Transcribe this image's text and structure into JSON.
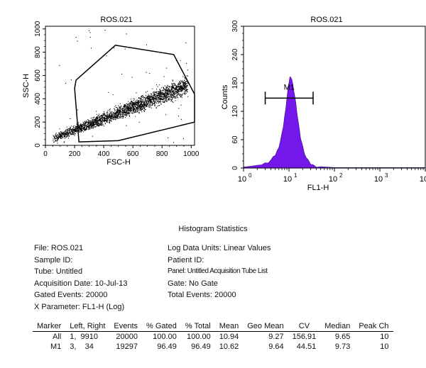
{
  "chart_data": [
    {
      "type": "scatter",
      "title": "ROS.021",
      "xlabel": "FSC-H",
      "ylabel": "SSC-H",
      "xlim": [
        0,
        1023
      ],
      "ylim": [
        0,
        1023
      ],
      "x_ticks": [
        "0",
        "200",
        "400",
        "600",
        "800",
        "1000"
      ],
      "y_ticks": [
        "0",
        "200",
        "400",
        "600",
        "800",
        "1000"
      ],
      "point_cloud": {
        "x_range": [
          50,
          1023
        ],
        "y_center_at_x50": 60,
        "y_center_at_x900": 480,
        "n_points": 20000
      },
      "gate_polygon": [
        [
          200,
          490
        ],
        [
          210,
          560
        ],
        [
          480,
          860
        ],
        [
          880,
          780
        ],
        [
          1023,
          440
        ],
        [
          1023,
          200
        ],
        [
          500,
          40
        ],
        [
          230,
          30
        ]
      ]
    },
    {
      "type": "bar",
      "title": "ROS.021",
      "xlabel": "FL1-H",
      "ylabel": "Counts",
      "x_scale": "log",
      "xlim": [
        1,
        10000
      ],
      "ylim": [
        0,
        300
      ],
      "x_ticks": [
        "10",
        "10",
        "10",
        "10",
        "10"
      ],
      "x_tick_exponents": [
        "0",
        "1",
        "2",
        "3",
        "4"
      ],
      "y_ticks": [
        "0",
        "60",
        "120",
        "180",
        "240",
        "300"
      ],
      "bar_color": "#7417ea",
      "marker": {
        "label": "M1",
        "left": 3,
        "right": 34,
        "y": 148
      },
      "histogram": {
        "x": [
          1,
          1.5,
          2,
          2.5,
          3,
          3.5,
          4,
          4.5,
          5,
          5.5,
          6,
          6.5,
          7,
          7.5,
          8,
          8.5,
          9,
          9.5,
          10,
          10.5,
          11,
          11.5,
          12,
          13,
          14,
          15,
          16,
          17,
          18,
          20,
          22,
          24,
          27,
          30,
          34,
          40,
          50,
          70,
          100,
          10000
        ],
        "counts": [
          2,
          4,
          6,
          8,
          10,
          13,
          17,
          22,
          28,
          36,
          46,
          58,
          72,
          88,
          108,
          128,
          148,
          166,
          182,
          192,
          194,
          188,
          178,
          160,
          140,
          118,
          98,
          80,
          64,
          46,
          32,
          22,
          14,
          9,
          6,
          4,
          3,
          2,
          1,
          1
        ]
      }
    }
  ],
  "stats_title": "Histogram Statistics",
  "meta_left": [
    "File: ROS.021",
    "Sample ID:",
    "Tube: Untitled",
    "Acquisition Date: 10-Jul-13",
    "Gated Events: 20000",
    "X Parameter: FL1-H (Log)"
  ],
  "meta_right": [
    "Log Data Units: Linear Values",
    "Patient ID:",
    "Panel: Untitled Acquisition Tube List",
    "Gate: No Gate",
    "Total Events: 20000"
  ],
  "table": {
    "headers": [
      "Marker",
      "Left, Right",
      "Events",
      "% Gated",
      "% Total",
      "Mean",
      "Geo Mean",
      "CV",
      "Median",
      "Peak Ch"
    ],
    "rows": [
      [
        "All",
        "1,  9910",
        "20000",
        "100.00",
        "100.00",
        "10.94",
        "9.27",
        "156.91",
        "9.65",
        "10"
      ],
      [
        "M1",
        "3,    34",
        "19297",
        "96.49",
        "96.49",
        "10.62",
        "9.64",
        "44.51",
        "9.73",
        "10"
      ]
    ]
  }
}
